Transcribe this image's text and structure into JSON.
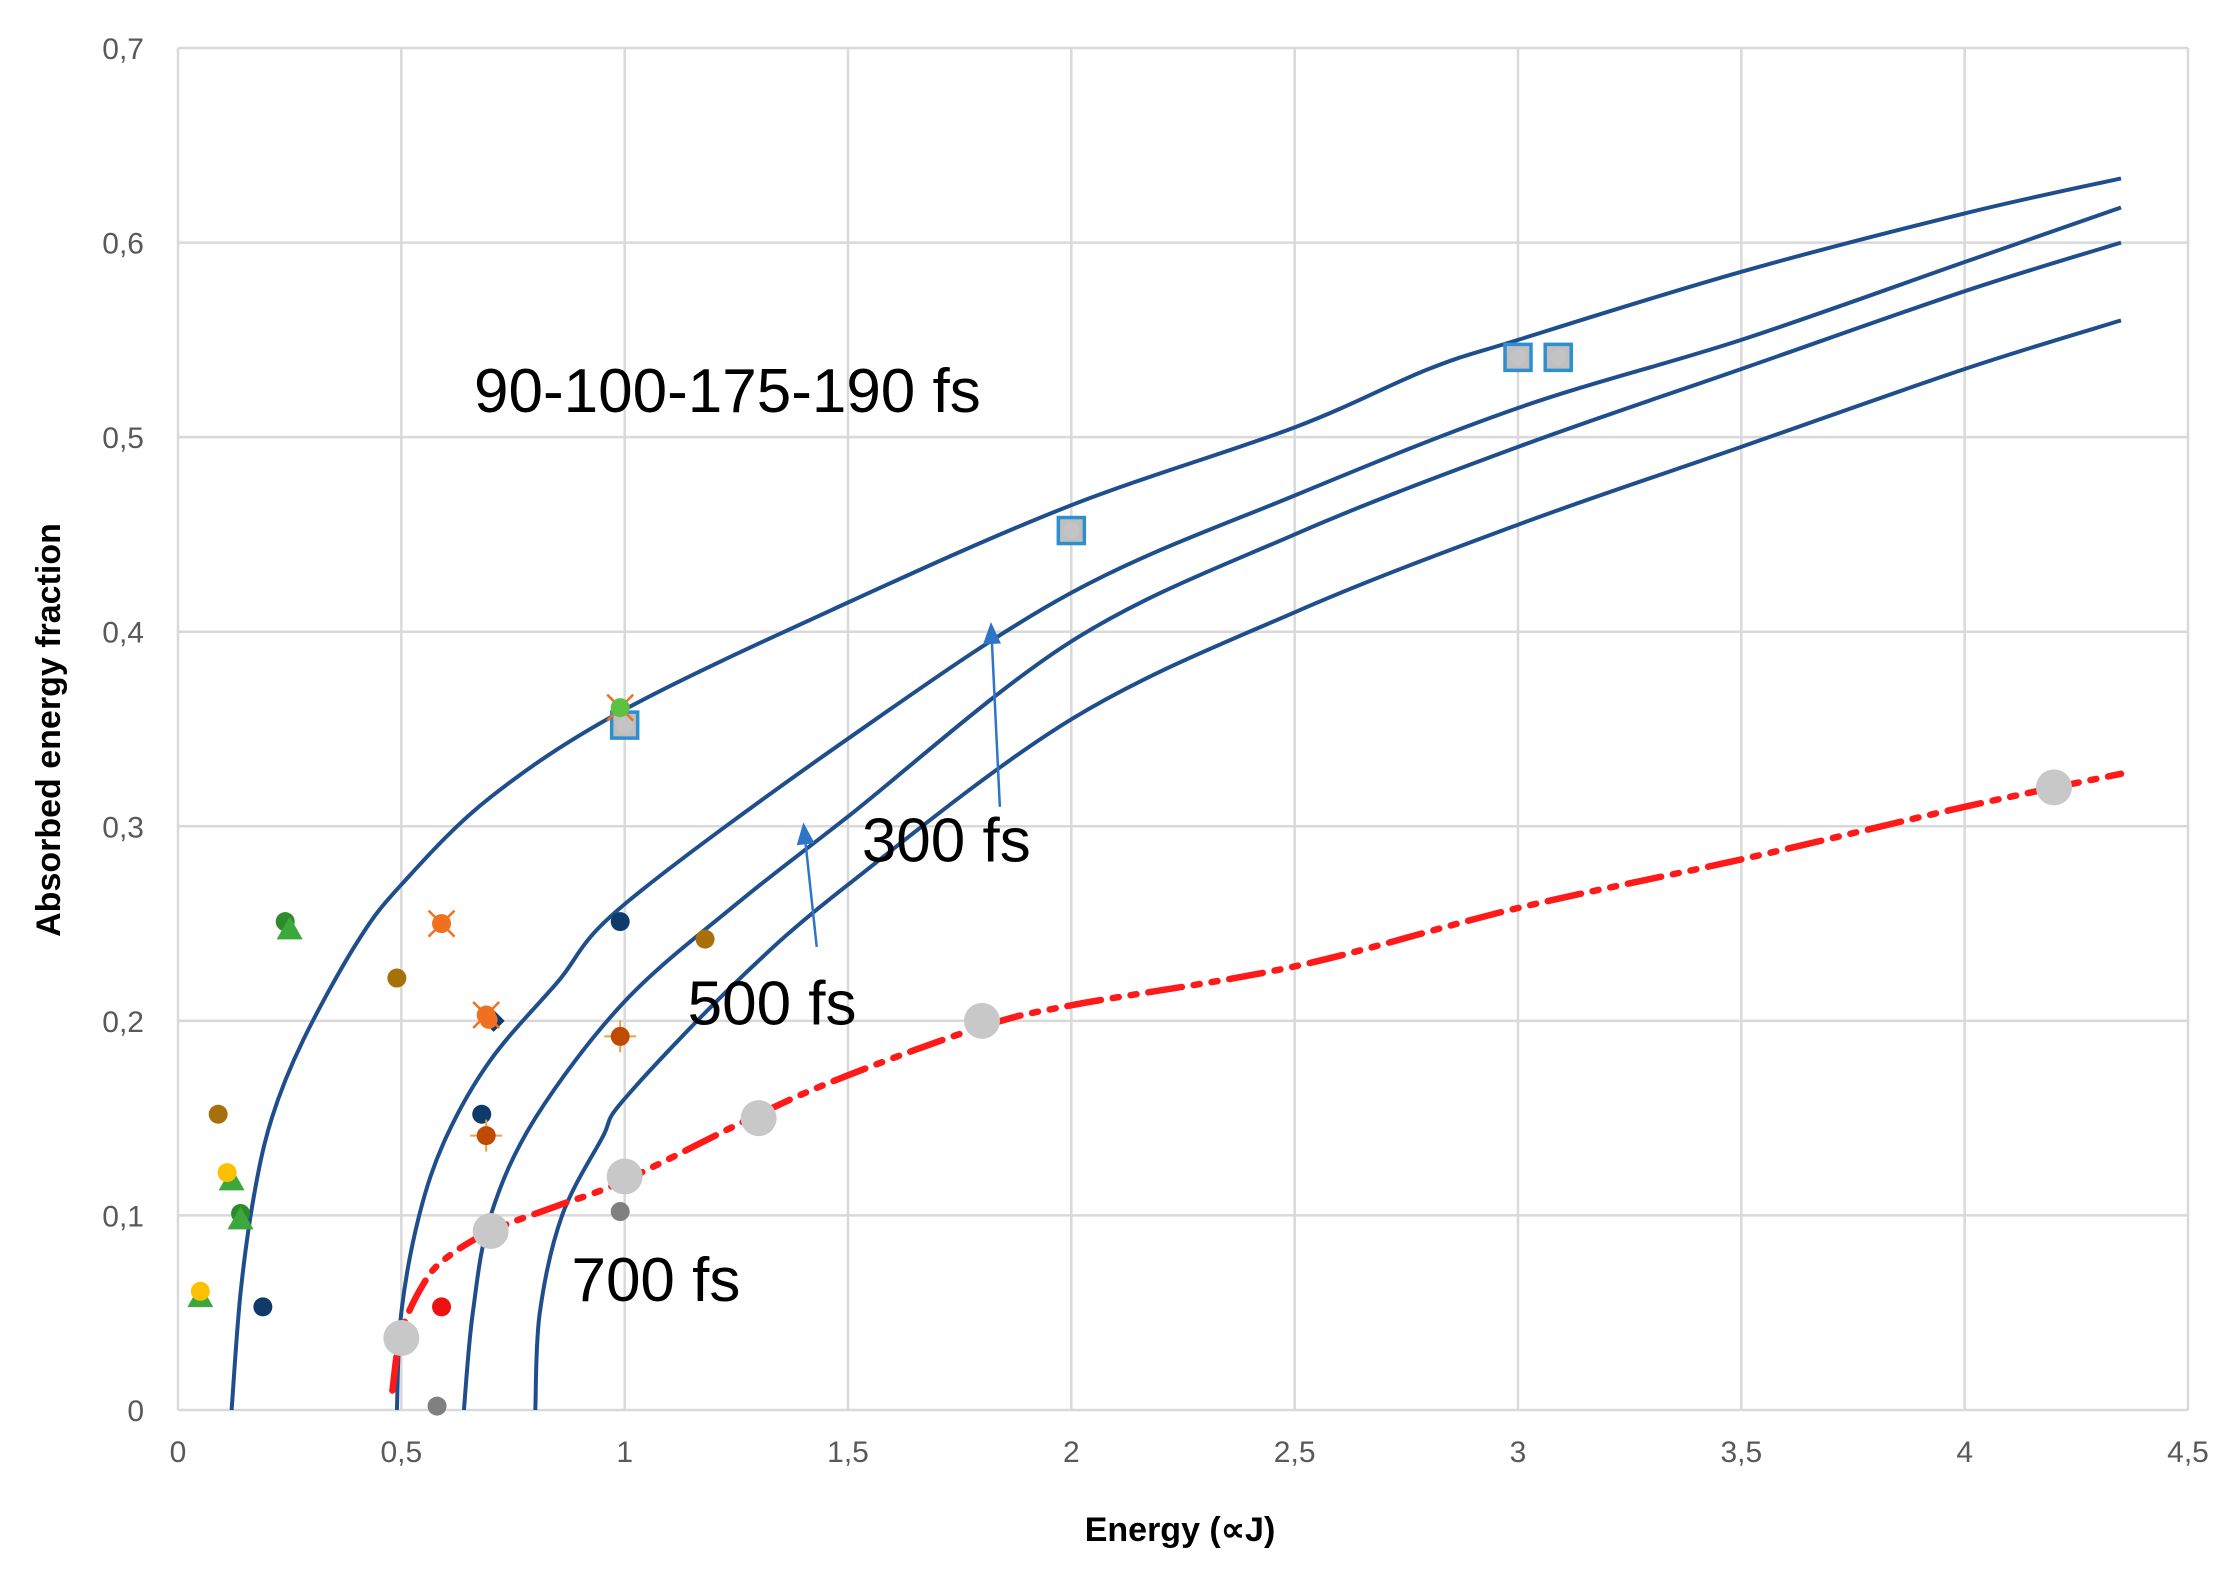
{
  "chart_data": {
    "type": "scatter",
    "title": "",
    "xlabel": "Energy (∝J)",
    "ylabel": "Absorbed energy fraction",
    "xlim": [
      0,
      4.5
    ],
    "ylim": [
      0,
      0.7
    ],
    "grid": true,
    "x_ticks": [
      0,
      0.5,
      1,
      1.5,
      2,
      2.5,
      3,
      3.5,
      4,
      4.5
    ],
    "x_tick_labels": [
      "0",
      "0,5",
      "1",
      "1,5",
      "2",
      "2,5",
      "3",
      "3,5",
      "4",
      "4,5"
    ],
    "y_ticks": [
      0,
      0.1,
      0.2,
      0.3,
      0.4,
      0.5,
      0.6,
      0.7
    ],
    "y_tick_labels": [
      "0",
      "0,1",
      "0,2",
      "0,3",
      "0,4",
      "0,5",
      "0,6",
      "0,7"
    ],
    "curves": [
      {
        "name": "curve-1",
        "color": "#1f4e8c",
        "points": [
          [
            0.12,
            0.0
          ],
          [
            0.14,
            0.06
          ],
          [
            0.17,
            0.11
          ],
          [
            0.21,
            0.15
          ],
          [
            0.28,
            0.19
          ],
          [
            0.4,
            0.24
          ],
          [
            0.5,
            0.27
          ],
          [
            0.7,
            0.315
          ],
          [
            1.0,
            0.36
          ],
          [
            1.5,
            0.415
          ],
          [
            2.0,
            0.465
          ],
          [
            2.5,
            0.505
          ],
          [
            2.8,
            0.535
          ],
          [
            3.0,
            0.55
          ],
          [
            3.5,
            0.585
          ],
          [
            4.0,
            0.615
          ],
          [
            4.35,
            0.633
          ]
        ]
      },
      {
        "name": "curve-2",
        "color": "#1f4e8c",
        "points": [
          [
            0.49,
            0.0
          ],
          [
            0.5,
            0.05
          ],
          [
            0.54,
            0.1
          ],
          [
            0.6,
            0.14
          ],
          [
            0.7,
            0.18
          ],
          [
            0.85,
            0.22
          ],
          [
            1.0,
            0.26
          ],
          [
            1.5,
            0.345
          ],
          [
            2.0,
            0.42
          ],
          [
            2.5,
            0.47
          ],
          [
            3.0,
            0.515
          ],
          [
            3.5,
            0.55
          ],
          [
            4.0,
            0.59
          ],
          [
            4.35,
            0.618
          ]
        ]
      },
      {
        "name": "curve-3",
        "color": "#1f4e8c",
        "points": [
          [
            0.64,
            0.0
          ],
          [
            0.66,
            0.05
          ],
          [
            0.7,
            0.1
          ],
          [
            0.8,
            0.15
          ],
          [
            1.0,
            0.21
          ],
          [
            1.25,
            0.26
          ],
          [
            1.5,
            0.305
          ],
          [
            2.0,
            0.395
          ],
          [
            2.5,
            0.45
          ],
          [
            3.0,
            0.495
          ],
          [
            3.5,
            0.535
          ],
          [
            4.0,
            0.575
          ],
          [
            4.35,
            0.6
          ]
        ]
      },
      {
        "name": "curve-4",
        "color": "#1f4e8c",
        "points": [
          [
            0.8,
            0.0
          ],
          [
            0.81,
            0.05
          ],
          [
            0.86,
            0.1
          ],
          [
            0.95,
            0.14
          ],
          [
            1.0,
            0.16
          ],
          [
            1.25,
            0.22
          ],
          [
            1.5,
            0.27
          ],
          [
            2.0,
            0.355
          ],
          [
            2.5,
            0.41
          ],
          [
            3.0,
            0.455
          ],
          [
            3.5,
            0.495
          ],
          [
            4.0,
            0.535
          ],
          [
            4.35,
            0.56
          ]
        ]
      }
    ],
    "fit_curve": {
      "name": "fit-curve",
      "color": "#ff1a1a",
      "style": "dash-dot-dot",
      "points": [
        [
          0.48,
          0.01
        ],
        [
          0.5,
          0.04
        ],
        [
          0.55,
          0.065
        ],
        [
          0.6,
          0.078
        ],
        [
          0.7,
          0.092
        ],
        [
          0.85,
          0.105
        ],
        [
          1.0,
          0.118
        ],
        [
          1.3,
          0.152
        ],
        [
          1.5,
          0.172
        ],
        [
          1.8,
          0.197
        ],
        [
          2.0,
          0.208
        ],
        [
          2.5,
          0.228
        ],
        [
          3.0,
          0.258
        ],
        [
          3.5,
          0.283
        ],
        [
          4.0,
          0.31
        ],
        [
          4.35,
          0.327
        ]
      ]
    },
    "series": [
      {
        "name": "gray-large",
        "shape": "circle-large",
        "color": "#c8c8c8",
        "points": [
          [
            0.5,
            0.037
          ],
          [
            0.7,
            0.092
          ],
          [
            1.0,
            0.12
          ],
          [
            1.3,
            0.15
          ],
          [
            1.8,
            0.2
          ],
          [
            4.2,
            0.32
          ]
        ]
      },
      {
        "name": "blue-square",
        "shape": "square-gray",
        "color": "#2e8fd0",
        "points": [
          [
            1.0,
            0.352
          ],
          [
            2.0,
            0.452
          ],
          [
            3.0,
            0.541
          ],
          [
            3.09,
            0.541
          ]
        ]
      },
      {
        "name": "navy",
        "shape": "circle",
        "color": "#0f3b6b",
        "points": [
          [
            0.19,
            0.053
          ],
          [
            0.68,
            0.152
          ],
          [
            0.99,
            0.251
          ]
        ]
      },
      {
        "name": "navy-diamond",
        "shape": "diamond",
        "color": "#0f3b6b",
        "points": [
          [
            0.7,
            0.2
          ]
        ]
      },
      {
        "name": "olive-brown",
        "shape": "circle",
        "color": "#a8700a",
        "points": [
          [
            0.09,
            0.152
          ],
          [
            0.49,
            0.222
          ],
          [
            1.18,
            0.242
          ]
        ]
      },
      {
        "name": "rust",
        "shape": "circle-cross",
        "color": "#c04a00",
        "points": [
          [
            0.69,
            0.141
          ],
          [
            0.99,
            0.192
          ]
        ]
      },
      {
        "name": "orange",
        "shape": "circle-x",
        "color": "#f07020",
        "points": [
          [
            0.59,
            0.25
          ],
          [
            0.69,
            0.203
          ]
        ]
      },
      {
        "name": "green-dark",
        "shape": "circle",
        "color": "#2d8a2d",
        "points": [
          [
            0.24,
            0.251
          ],
          [
            0.14,
            0.101
          ]
        ]
      },
      {
        "name": "green-triangle",
        "shape": "triangle",
        "color": "#3aa83a",
        "points": [
          [
            0.25,
            0.247
          ],
          [
            0.14,
            0.098
          ],
          [
            0.12,
            0.118
          ],
          [
            0.05,
            0.058
          ]
        ]
      },
      {
        "name": "yellow",
        "shape": "circle",
        "color": "#ffc000",
        "points": [
          [
            0.11,
            0.122
          ],
          [
            0.05,
            0.061
          ]
        ]
      },
      {
        "name": "light-green",
        "shape": "circle-x",
        "color": "#5cc040",
        "points": [
          [
            0.99,
            0.361
          ]
        ]
      },
      {
        "name": "red",
        "shape": "circle",
        "color": "#ee1111",
        "points": [
          [
            0.59,
            0.053
          ]
        ]
      },
      {
        "name": "gray-small",
        "shape": "circle",
        "color": "#808080",
        "points": [
          [
            0.58,
            0.002
          ],
          [
            0.99,
            0.102
          ]
        ]
      }
    ],
    "annotations": [
      {
        "text": "90-100-175-190 fs",
        "x": 1.23,
        "y": 0.513
      },
      {
        "text": "300 fs",
        "x": 1.72,
        "y": 0.282
      },
      {
        "text": "500 fs",
        "x": 1.33,
        "y": 0.198
      },
      {
        "text": "700 fs",
        "x": 1.07,
        "y": 0.056
      }
    ],
    "arrows": [
      {
        "name": "arrow-300fs",
        "from": [
          1.84,
          0.31
        ],
        "to": [
          1.82,
          0.405
        ]
      },
      {
        "name": "arrow-500fs",
        "from": [
          1.43,
          0.238
        ],
        "to": [
          1.4,
          0.302
        ]
      }
    ]
  }
}
